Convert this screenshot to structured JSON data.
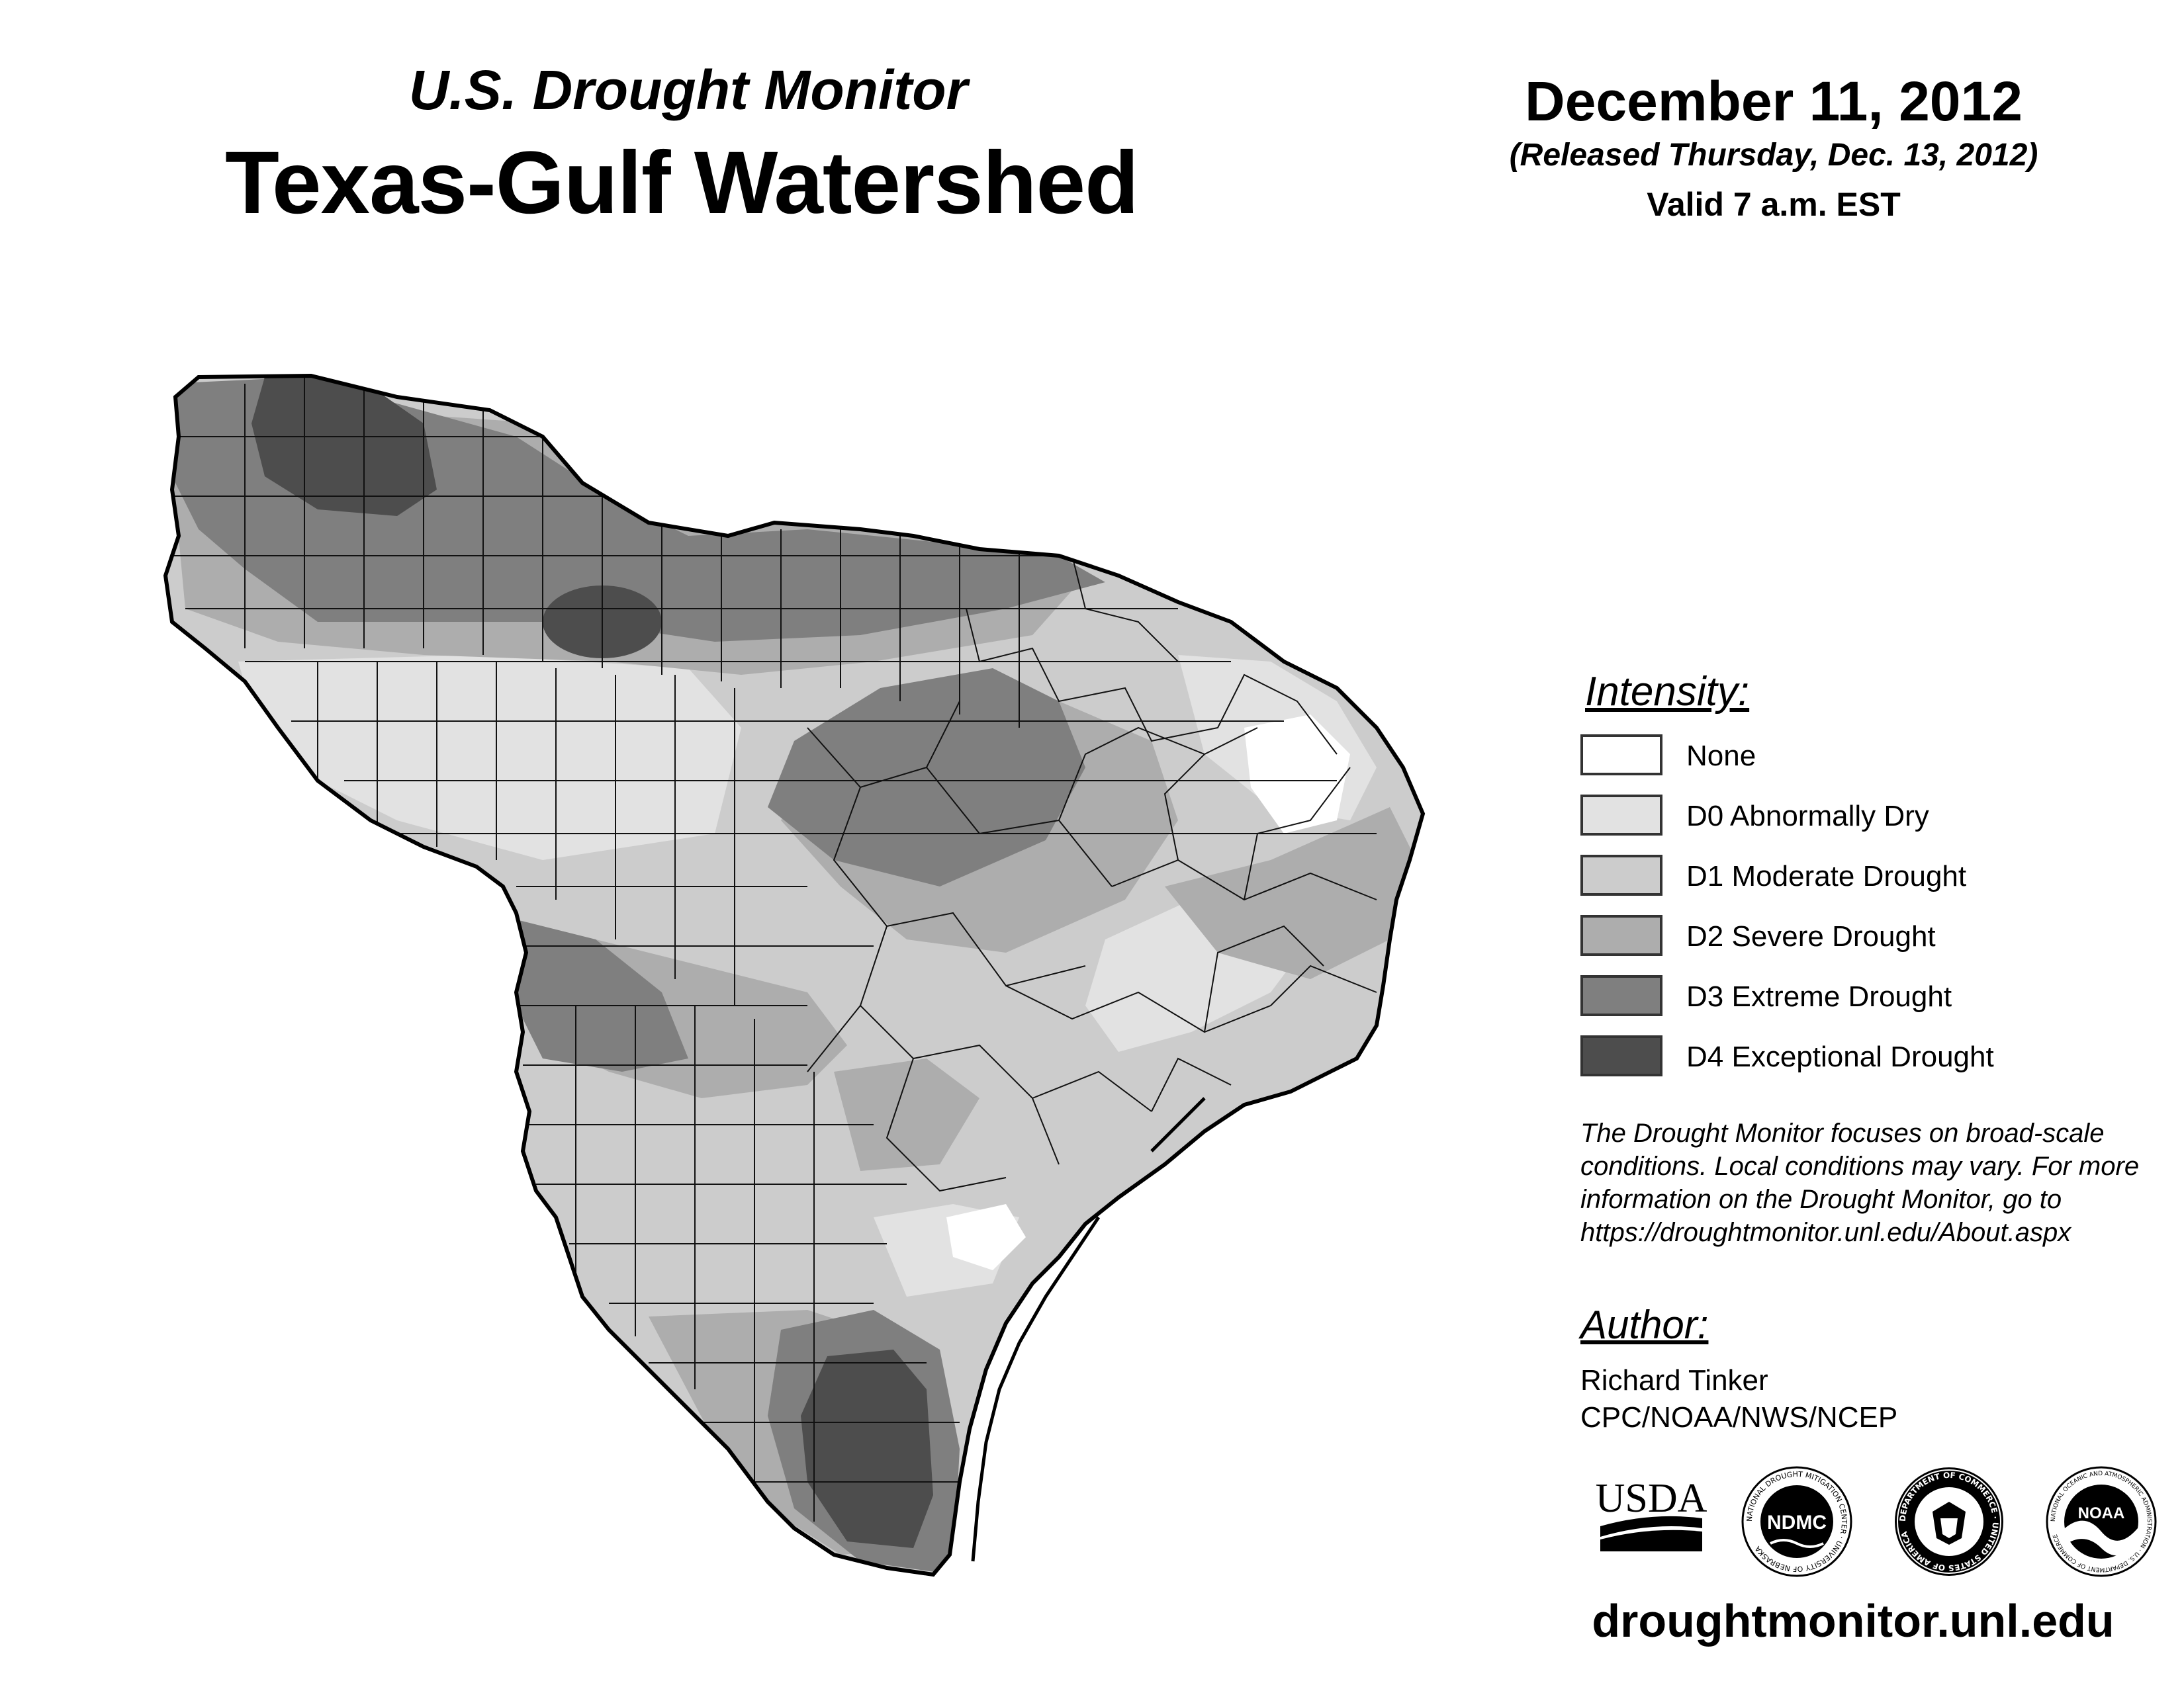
{
  "header": {
    "subtitle": "U.S. Drought Monitor",
    "title": "Texas-Gulf Watershed",
    "date": "December 11, 2012",
    "released": "(Released Thursday, Dec. 13, 2012)",
    "valid": "Valid 7 a.m. EST"
  },
  "legend": {
    "title": "Intensity:",
    "items": [
      {
        "label": "None",
        "color": "#ffffff"
      },
      {
        "label": "D0 Abnormally Dry",
        "color": "#e2e2e2"
      },
      {
        "label": "D1 Moderate Drought",
        "color": "#cccccc"
      },
      {
        "label": "D2 Severe Drought",
        "color": "#adadad"
      },
      {
        "label": "D3 Extreme Drought",
        "color": "#7f7f7f"
      },
      {
        "label": "D4 Exceptional Drought",
        "color": "#4d4d4d"
      }
    ]
  },
  "note": {
    "lines": [
      "The Drought Monitor focuses on broad-scale",
      "conditions. Local conditions may vary. For more",
      "information on the Drought Monitor, go to",
      "https://droughtmonitor.unl.edu/About.aspx"
    ]
  },
  "author": {
    "title": "Author:",
    "name": "Richard Tinker",
    "org": "CPC/NOAA/NWS/NCEP"
  },
  "logos": {
    "usda": "USDA",
    "ndmc": "NDMC",
    "ndmc_ring": "NATIONAL DROUGHT MITIGATION CENTER · UNIVERSITY OF NEBRASKA",
    "commerce_ring": "DEPARTMENT OF COMMERCE · UNITED STATES OF AMERICA",
    "noaa": "NOAA",
    "noaa_ring": "NATIONAL OCEANIC AND ATMOSPHERIC ADMINISTRATION · U.S. DEPARTMENT OF COMMERCE"
  },
  "website": "droughtmonitor.unl.edu"
}
